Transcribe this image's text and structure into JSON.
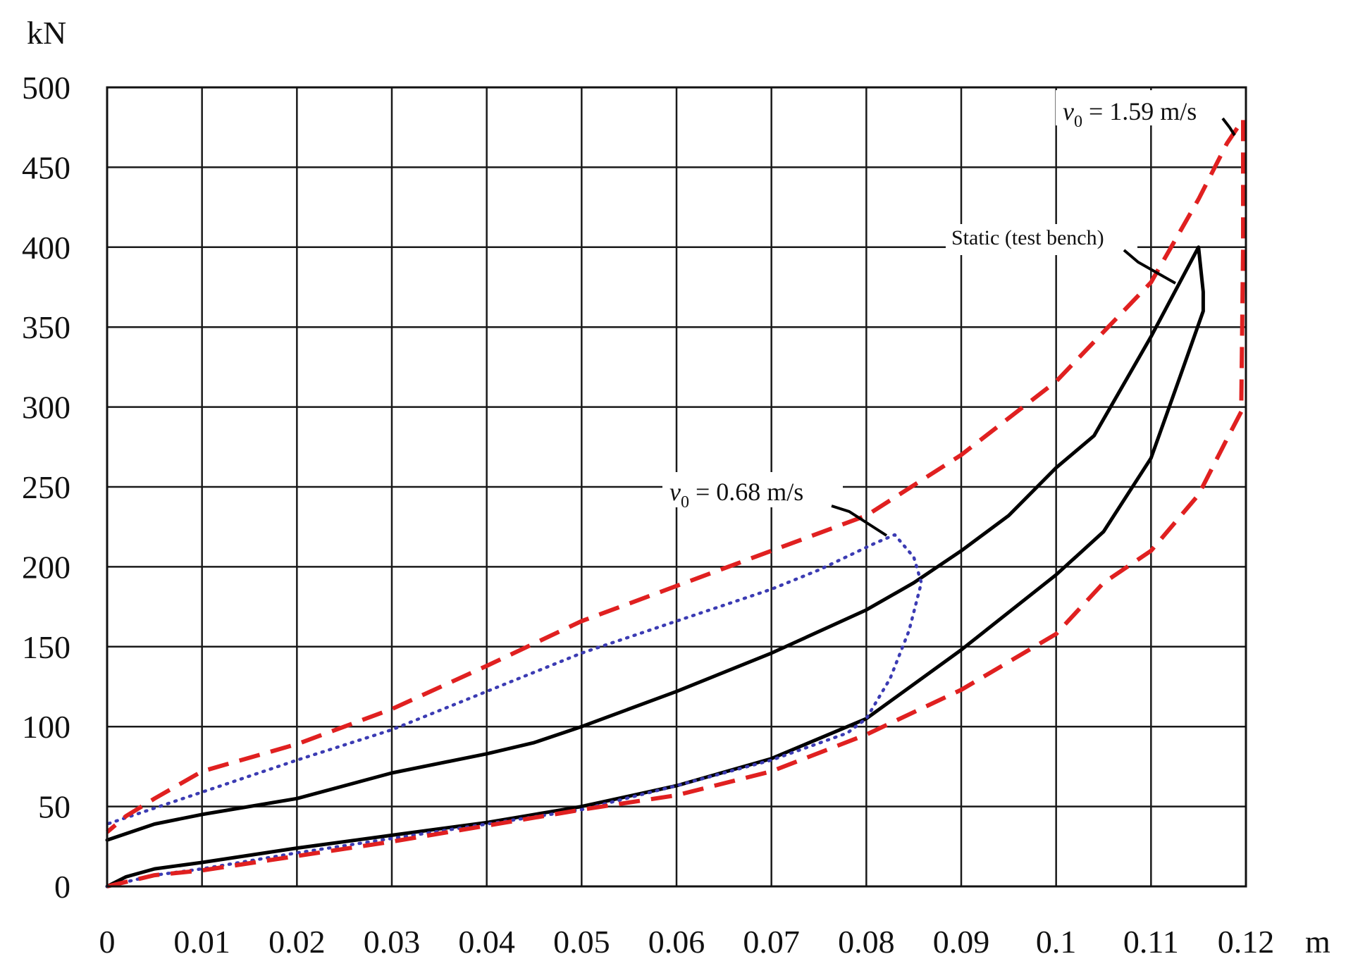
{
  "chart_data": {
    "type": "line",
    "title": "",
    "xlabel": "m",
    "ylabel": "kN",
    "xlim": [
      0,
      0.12
    ],
    "ylim": [
      0,
      500
    ],
    "x_ticks": [
      0,
      0.01,
      0.02,
      0.03,
      0.04,
      0.05,
      0.06,
      0.07,
      0.08,
      0.09,
      0.1,
      0.11,
      0.12
    ],
    "x_tick_labels": [
      "0",
      "0.01",
      "0.02",
      "0.03",
      "0.04",
      "0.05",
      "0.06",
      "0.07",
      "0.08",
      "0.09",
      "0.1",
      "0.11",
      "0.12"
    ],
    "y_ticks": [
      0,
      50,
      100,
      150,
      200,
      250,
      300,
      350,
      400,
      450,
      500
    ],
    "y_tick_labels": [
      "0",
      "50",
      "100",
      "150",
      "200",
      "250",
      "300",
      "350",
      "400",
      "450",
      "500"
    ],
    "grid": true,
    "legend": "none",
    "series": [
      {
        "name": "Static (test bench)",
        "color": "#000000",
        "style": "solid",
        "points": [
          [
            0,
            0
          ],
          [
            0.002,
            6
          ],
          [
            0.005,
            11
          ],
          [
            0.01,
            15
          ],
          [
            0.02,
            24
          ],
          [
            0.03,
            32
          ],
          [
            0.04,
            40
          ],
          [
            0.05,
            50
          ],
          [
            0.06,
            63
          ],
          [
            0.07,
            80
          ],
          [
            0.08,
            105
          ],
          [
            0.09,
            148
          ],
          [
            0.1,
            195
          ],
          [
            0.105,
            222
          ],
          [
            0.11,
            268
          ],
          [
            0.113,
            318
          ],
          [
            0.1155,
            360
          ],
          [
            0.1155,
            372
          ],
          [
            0.115,
            400
          ],
          [
            0.11,
            344
          ],
          [
            0.104,
            282
          ],
          [
            0.1,
            262
          ],
          [
            0.095,
            232
          ],
          [
            0.09,
            210
          ],
          [
            0.085,
            190
          ],
          [
            0.08,
            173
          ],
          [
            0.07,
            146
          ],
          [
            0.06,
            122
          ],
          [
            0.05,
            100
          ],
          [
            0.045,
            90
          ],
          [
            0.04,
            83
          ],
          [
            0.03,
            71
          ],
          [
            0.02,
            55
          ],
          [
            0.01,
            45
          ],
          [
            0.005,
            39
          ],
          [
            0,
            29
          ]
        ]
      },
      {
        "name": "v0 = 0.68 m/s",
        "color": "#3b3bb3",
        "style": "dotted",
        "points": [
          [
            0,
            0
          ],
          [
            0.005,
            7
          ],
          [
            0.01,
            11
          ],
          [
            0.02,
            21
          ],
          [
            0.03,
            30
          ],
          [
            0.04,
            39
          ],
          [
            0.05,
            48
          ],
          [
            0.06,
            63
          ],
          [
            0.07,
            79
          ],
          [
            0.078,
            96
          ],
          [
            0.08,
            105
          ],
          [
            0.0825,
            130
          ],
          [
            0.0845,
            160
          ],
          [
            0.0858,
            190
          ],
          [
            0.085,
            206
          ],
          [
            0.083,
            220
          ],
          [
            0.081,
            215
          ],
          [
            0.075,
            198
          ],
          [
            0.07,
            186
          ],
          [
            0.06,
            166
          ],
          [
            0.05,
            146
          ],
          [
            0.04,
            122
          ],
          [
            0.03,
            98
          ],
          [
            0.02,
            79
          ],
          [
            0.01,
            59
          ],
          [
            0.005,
            49
          ],
          [
            0,
            39
          ]
        ]
      },
      {
        "name": "v0 = 1.59 m/s",
        "color": "#e02020",
        "style": "dashed",
        "points": [
          [
            0,
            0
          ],
          [
            0.005,
            7
          ],
          [
            0.01,
            10
          ],
          [
            0.02,
            19
          ],
          [
            0.03,
            28
          ],
          [
            0.04,
            38
          ],
          [
            0.05,
            48
          ],
          [
            0.06,
            57
          ],
          [
            0.07,
            72
          ],
          [
            0.08,
            95
          ],
          [
            0.09,
            123
          ],
          [
            0.1,
            158
          ],
          [
            0.105,
            190
          ],
          [
            0.11,
            210
          ],
          [
            0.115,
            245
          ],
          [
            0.118,
            280
          ],
          [
            0.1195,
            297
          ],
          [
            0.1197,
            400
          ],
          [
            0.1197,
            480
          ],
          [
            0.118,
            465
          ],
          [
            0.115,
            430
          ],
          [
            0.11,
            378
          ],
          [
            0.1,
            316
          ],
          [
            0.09,
            270
          ],
          [
            0.08,
            232
          ],
          [
            0.07,
            210
          ],
          [
            0.06,
            188
          ],
          [
            0.05,
            166
          ],
          [
            0.04,
            138
          ],
          [
            0.03,
            111
          ],
          [
            0.02,
            89
          ],
          [
            0.01,
            72
          ],
          [
            0.005,
            55
          ],
          [
            0.002,
            44
          ],
          [
            0,
            34
          ]
        ]
      }
    ],
    "annotations": [
      {
        "label_prefix": "v",
        "label_sub": "0",
        "label_rest": " = 1.59 m/s",
        "series": "v0 = 1.59 m/s"
      },
      {
        "label_prefix": "",
        "label_sub": "",
        "label_rest": "Static (test bench)",
        "series": "Static (test bench)"
      },
      {
        "label_prefix": "v",
        "label_sub": "0",
        "label_rest": " = 0.68 m/s",
        "series": "v0 = 0.68 m/s"
      }
    ]
  }
}
